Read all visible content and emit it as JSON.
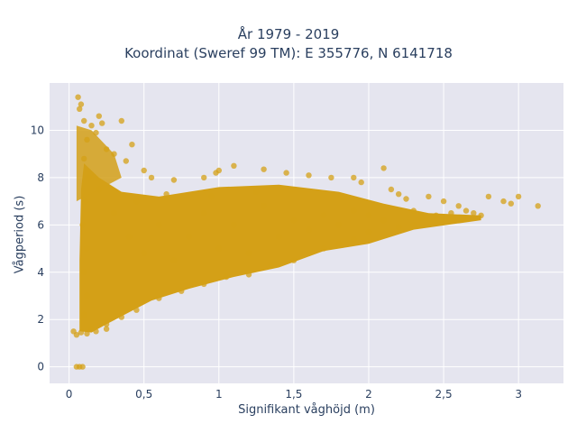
{
  "chart_data": {
    "type": "scatter",
    "title": "År 1979 - 2019",
    "subtitle": "Koordinat (Sweref 99 TM): E 355776, N 6141718",
    "xlabel": "Signifikant våghöjd (m)",
    "ylabel": "Vågperiod (s)",
    "xlim": [
      -0.13,
      3.3
    ],
    "ylim": [
      -0.7,
      12.0
    ],
    "x_ticks": [
      0,
      0.5,
      1,
      1.5,
      2,
      2.5,
      3
    ],
    "x_tick_labels": [
      "0",
      "0,5",
      "1",
      "1,5",
      "2",
      "2,5",
      "3"
    ],
    "y_ticks": [
      0,
      2,
      4,
      6,
      8,
      10
    ],
    "y_tick_labels": [
      "0",
      "2",
      "4",
      "6",
      "8",
      "10"
    ],
    "grid": true,
    "legend": "none",
    "colors": {
      "marker": "#D4A017",
      "plot_background": "#E5E5EF",
      "grid": "#FFFFFF",
      "text": "#2A3F5F"
    },
    "series": [
      {
        "points": [
          [
            0.05,
            0.0
          ],
          [
            0.07,
            0.0
          ],
          [
            0.09,
            0.0
          ],
          [
            0.03,
            1.5
          ],
          [
            0.05,
            1.35
          ],
          [
            0.08,
            1.45
          ],
          [
            0.12,
            1.4
          ],
          [
            0.18,
            1.5
          ],
          [
            0.25,
            1.6
          ],
          [
            0.06,
            11.4
          ],
          [
            0.08,
            11.1
          ],
          [
            0.07,
            10.9
          ],
          [
            0.1,
            10.4
          ],
          [
            0.15,
            10.2
          ],
          [
            0.2,
            10.6
          ],
          [
            0.22,
            10.3
          ],
          [
            0.35,
            10.4
          ],
          [
            0.18,
            9.9
          ],
          [
            0.12,
            9.6
          ],
          [
            0.25,
            9.2
          ],
          [
            0.3,
            9.0
          ],
          [
            0.42,
            9.4
          ],
          [
            0.38,
            8.7
          ],
          [
            0.5,
            8.3
          ],
          [
            0.55,
            8.0
          ],
          [
            0.7,
            7.9
          ],
          [
            0.9,
            8.0
          ],
          [
            1.0,
            8.3
          ],
          [
            1.1,
            8.5
          ],
          [
            0.98,
            8.2
          ],
          [
            1.3,
            8.35
          ],
          [
            1.45,
            8.2
          ],
          [
            1.6,
            8.1
          ],
          [
            1.75,
            8.0
          ],
          [
            1.9,
            8.0
          ],
          [
            1.95,
            7.8
          ],
          [
            2.1,
            8.4
          ],
          [
            2.15,
            7.5
          ],
          [
            2.2,
            7.3
          ],
          [
            2.25,
            7.1
          ],
          [
            2.4,
            7.2
          ],
          [
            2.5,
            7.0
          ],
          [
            2.6,
            6.8
          ],
          [
            2.65,
            6.6
          ],
          [
            2.8,
            7.2
          ],
          [
            2.9,
            7.0
          ],
          [
            3.0,
            7.2
          ],
          [
            2.95,
            6.9
          ],
          [
            3.13,
            6.8
          ],
          [
            2.75,
            6.4
          ],
          [
            2.55,
            6.5
          ],
          [
            2.35,
            6.3
          ],
          [
            2.3,
            6.0
          ],
          [
            2.2,
            5.9
          ],
          [
            2.1,
            6.2
          ],
          [
            2.0,
            5.7
          ],
          [
            1.9,
            5.4
          ],
          [
            1.8,
            5.2
          ],
          [
            1.7,
            5.0
          ],
          [
            1.6,
            4.8
          ],
          [
            1.5,
            4.5
          ],
          [
            1.35,
            4.3
          ],
          [
            1.2,
            3.9
          ],
          [
            1.05,
            3.8
          ],
          [
            0.9,
            3.5
          ],
          [
            0.75,
            3.2
          ],
          [
            0.6,
            2.9
          ],
          [
            0.45,
            2.4
          ],
          [
            0.35,
            2.1
          ],
          [
            0.25,
            1.8
          ],
          [
            0.15,
            1.6
          ],
          [
            0.1,
            2.2
          ],
          [
            0.12,
            3.0
          ],
          [
            0.1,
            4.0
          ],
          [
            0.12,
            5.0
          ],
          [
            0.09,
            6.0
          ],
          [
            0.11,
            7.0
          ],
          [
            0.13,
            8.0
          ],
          [
            0.1,
            8.8
          ],
          [
            0.2,
            7.5
          ],
          [
            0.3,
            6.5
          ],
          [
            0.4,
            5.5
          ],
          [
            0.5,
            4.8
          ],
          [
            0.6,
            6.0
          ],
          [
            0.7,
            4.5
          ],
          [
            0.8,
            5.5
          ],
          [
            0.9,
            6.5
          ],
          [
            1.0,
            5.0
          ],
          [
            1.1,
            6.0
          ],
          [
            1.2,
            4.8
          ],
          [
            1.3,
            6.8
          ],
          [
            1.4,
            5.5
          ],
          [
            1.5,
            6.2
          ],
          [
            1.6,
            5.8
          ],
          [
            1.7,
            6.4
          ],
          [
            1.8,
            6.0
          ],
          [
            1.9,
            6.6
          ],
          [
            2.0,
            6.4
          ],
          [
            2.3,
            6.6
          ],
          [
            2.45,
            6.4
          ],
          [
            2.7,
            6.5
          ],
          [
            1.25,
            7.4
          ],
          [
            0.95,
            7.2
          ],
          [
            0.65,
            7.3
          ],
          [
            0.45,
            7.0
          ]
        ]
      }
    ]
  }
}
